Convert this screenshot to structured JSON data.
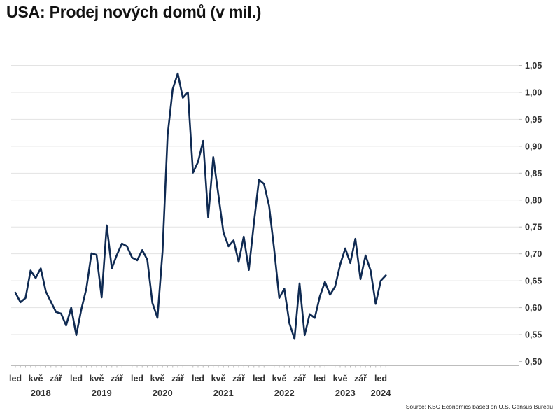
{
  "title": "USA: Prodej nových domů (v mil.)",
  "source": "Source: KBC Economics based on U.S. Census Bureau",
  "colors": {
    "line": "#0f2a52",
    "grid": "#e3e3e3",
    "axis": "#bdbdbd",
    "text": "#333333"
  },
  "chart_data": {
    "type": "line",
    "title": "USA: Prodej nových domů (v mil.)",
    "xlabel": "",
    "ylabel": "",
    "x_start": "2018-01",
    "x_end": "2024-02",
    "ylim": [
      0.5,
      1.05
    ],
    "yticks": [
      0.5,
      0.55,
      0.6,
      0.65,
      0.7,
      0.75,
      0.8,
      0.85,
      0.9,
      0.95,
      1.0,
      1.05
    ],
    "ytick_labels": [
      "0,50",
      "0,55",
      "0,60",
      "0,65",
      "0,70",
      "0,75",
      "0,80",
      "0,85",
      "0,90",
      "0,95",
      "1,00",
      "1,05"
    ],
    "y_axis_position": "right",
    "grid": true,
    "month_ticks": [
      {
        "date": "2018-01",
        "label": "led"
      },
      {
        "date": "2018-05",
        "label": "kvě"
      },
      {
        "date": "2018-09",
        "label": "zář"
      },
      {
        "date": "2019-01",
        "label": "led"
      },
      {
        "date": "2019-05",
        "label": "kvě"
      },
      {
        "date": "2019-09",
        "label": "zář"
      },
      {
        "date": "2020-01",
        "label": "led"
      },
      {
        "date": "2020-05",
        "label": "kvě"
      },
      {
        "date": "2020-09",
        "label": "zář"
      },
      {
        "date": "2021-01",
        "label": "led"
      },
      {
        "date": "2021-05",
        "label": "kvě"
      },
      {
        "date": "2021-09",
        "label": "zář"
      },
      {
        "date": "2022-01",
        "label": "led"
      },
      {
        "date": "2022-05",
        "label": "kvě"
      },
      {
        "date": "2022-09",
        "label": "zář"
      },
      {
        "date": "2023-01",
        "label": "led"
      },
      {
        "date": "2023-05",
        "label": "kvě"
      },
      {
        "date": "2023-09",
        "label": "zář"
      },
      {
        "date": "2024-01",
        "label": "led"
      }
    ],
    "year_labels": [
      {
        "date": "2018-06",
        "label": "2018"
      },
      {
        "date": "2019-06",
        "label": "2019"
      },
      {
        "date": "2020-06",
        "label": "2020"
      },
      {
        "date": "2021-06",
        "label": "2021"
      },
      {
        "date": "2022-06",
        "label": "2022"
      },
      {
        "date": "2023-06",
        "label": "2023"
      },
      {
        "date": "2024-01",
        "label": "2024"
      }
    ],
    "series": [
      {
        "values": [
          0.628,
          0.61,
          0.618,
          0.669,
          0.655,
          0.673,
          0.63,
          0.611,
          0.592,
          0.589,
          0.567,
          0.6,
          0.549,
          0.597,
          0.636,
          0.701,
          0.698,
          0.619,
          0.753,
          0.673,
          0.698,
          0.719,
          0.714,
          0.693,
          0.688,
          0.707,
          0.689,
          0.609,
          0.581,
          0.704,
          0.921,
          1.006,
          1.035,
          0.99,
          1.0,
          0.851,
          0.871,
          0.91,
          0.768,
          0.88,
          0.81,
          0.74,
          0.714,
          0.725,
          0.685,
          0.732,
          0.67,
          0.757,
          0.838,
          0.83,
          0.789,
          0.708,
          0.618,
          0.635,
          0.571,
          0.542,
          0.645,
          0.549,
          0.588,
          0.581,
          0.621,
          0.648,
          0.624,
          0.639,
          0.68,
          0.71,
          0.683,
          0.728,
          0.653,
          0.697,
          0.669,
          0.607,
          0.65,
          0.66
        ]
      }
    ]
  }
}
